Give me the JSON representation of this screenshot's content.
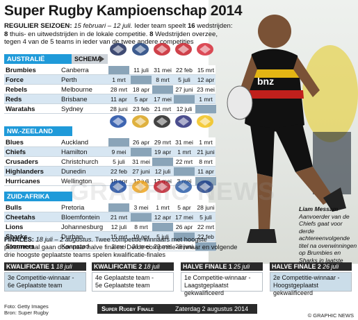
{
  "title": "Super Rugby Kampioenschap 2014",
  "intro": {
    "season_label": "REGULIER SEIZOEN:",
    "season_dates": "15 februari – 12 juli.",
    "line1_a": " Ieder team speelt ",
    "line1_num": "16",
    "line1_b": " wedstrijden:",
    "num8a": "8",
    "line2": " thuis- en uitwedstrijden in de lokale competitie. ",
    "num8b": "8",
    "line3": " Wedstrijden overzee, tegen 4 van de 5 teams in ieder van de twee andere competities"
  },
  "schema_label": "SCHEMA",
  "conferences": [
    {
      "name": "AUSTRALIË",
      "logos": [
        "brumbies-logo-icon",
        "force-logo-icon",
        "rebels-logo-icon",
        "reds-logo-icon",
        "waratahs-logo-icon"
      ],
      "rows": [
        {
          "team": "Brumbies",
          "city": "Canberra",
          "cells": [
            "",
            "11 juli",
            "31 mei",
            "22 feb",
            "15 mrt"
          ]
        },
        {
          "team": "Force",
          "city": "Perth",
          "cells": [
            "1 mrt",
            "",
            "8 mrt",
            "5 juli",
            "12 apr"
          ]
        },
        {
          "team": "Rebels",
          "city": "Melbourne",
          "cells": [
            "28 mrt",
            "18 apr",
            "",
            "27 juni",
            "23 mei"
          ]
        },
        {
          "team": "Reds",
          "city": "Brisbane",
          "cells": [
            "11 apr",
            "5 apr",
            "17 mei",
            "",
            "1 mrt"
          ]
        },
        {
          "team": "Waratahs",
          "city": "Sydney",
          "cells": [
            "28 juni",
            "23 feb",
            "21 mrt",
            "12 juli",
            ""
          ]
        }
      ]
    },
    {
      "name": "NW.-ZEELAND",
      "logos": [
        "blues-logo-icon",
        "chiefs-logo-icon",
        "crusaders-logo-icon",
        "highlanders-logo-icon",
        "hurricanes-logo-icon"
      ],
      "rows": [
        {
          "team": "Blues",
          "city": "Auckland",
          "cells": [
            "",
            "26 apr",
            "29 mrt",
            "31 mei",
            "1 mrt"
          ]
        },
        {
          "team": "Chiefs",
          "city": "Hamilton",
          "cells": [
            "9 mei",
            "",
            "19 apr",
            "1 mrt",
            "21 juni"
          ]
        },
        {
          "team": "Crusaders",
          "city": "Christchurch",
          "cells": [
            "5 juli",
            "31 mei",
            "",
            "22 mrt",
            "8 mrt"
          ]
        },
        {
          "team": "Highlanders",
          "city": "Dunedin",
          "cells": [
            "22 feb",
            "27 juni",
            "12 juli",
            "",
            "11 apr"
          ]
        },
        {
          "team": "Hurricanes",
          "city": "Wellington",
          "cells": [
            "18 apr",
            "12 juli",
            "17 mei",
            "3 mei",
            ""
          ]
        }
      ]
    },
    {
      "name": "ZUID-AFRIKA",
      "logos": [
        "bulls-logo-icon",
        "cheetahs-logo-icon",
        "lions-logo-icon",
        "sharks-logo-icon",
        "stormers-logo-icon"
      ],
      "rows": [
        {
          "team": "Bulls",
          "city": "Pretoria",
          "cells": [
            "",
            "3 mei",
            "1 mrt",
            "5 apr",
            "28 juni"
          ]
        },
        {
          "team": "Cheetahs",
          "city": "Bloemfontein",
          "cells": [
            "21 mrt",
            "",
            "12 apr",
            "17 mei",
            "5 juli"
          ]
        },
        {
          "team": "Lions",
          "city": "Johannesburg",
          "cells": [
            "12 juli",
            "8 mrt",
            "",
            "26 apr",
            "22 mrt"
          ]
        },
        {
          "team": "Sharks",
          "city": "Durban",
          "cells": [
            "15 mrt",
            "19 apr",
            "5 juli",
            "",
            "22 feb"
          ]
        },
        {
          "team": "Stormers",
          "city": "Kaapstad",
          "cells": [
            "3 mei",
            "31 mei",
            "23 mei",
            "28 juni",
            ""
          ]
        }
      ]
    }
  ],
  "finals": {
    "label": "FINALES:",
    "dates": "18 juli – 2 augustus.",
    "text": " Twee competitie-winnaars met hoogste puntentotaal gaan door naar halve finales. Derde competitie-winnaar en volgende drie hoogste geplaatste teams spelen kwalificatie-finales"
  },
  "qualifiers": [
    {
      "head": "KWALIFICATIE 1",
      "date": "18 juli",
      "line1": "3e Competitie-winnaar -",
      "line2": "6e Geplaatste team"
    },
    {
      "head": "KWALIFICATIE 2",
      "date": "18 juli",
      "line1": "4e Geplaatste team -",
      "line2": "5e Geplaatste team"
    },
    {
      "head": "HALVE FINALE 1",
      "date": "25 juli",
      "line1": "1e Competitie-winnaar -",
      "line2": "Laagstgeplaatst gekwalificeerd"
    },
    {
      "head": "HALVE FINALE 2",
      "date": "26 juli",
      "line1": "2e Competitie-winnaar -",
      "line2": "Hoogstgeplaatst gekwalificeerd"
    }
  ],
  "final_bar": {
    "label": "Super Rugby Finale",
    "date": "Zaterdag 2 augustus 2014"
  },
  "credit": {
    "line1": "Foto: Getty Images",
    "line2": "Bron: Super Rugby"
  },
  "copyright": "© GRAPHIC NEWS",
  "watermark": "GRAPHIC NEWS",
  "caption": {
    "name": "Liam Messam",
    "text": "Aanvoerder van de Chiefs gaat voor derde achtereenvolgende titel na overwinningen op Brumbies en Sharks in laatste twee jaar"
  },
  "colors": {
    "conference_label": "#1f9ad9",
    "row_alt": "#d7e6f2",
    "blank_cell": "#8aa4b8",
    "dark_bar": "#2a2a2a"
  }
}
